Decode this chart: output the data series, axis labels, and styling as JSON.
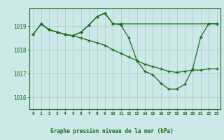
{
  "title": "Graphe pression niveau de la mer (hPa)",
  "background_color": "#cce8e8",
  "plot_bg_color": "#cce8e8",
  "line_color": "#1a6b1a",
  "grid_color": "#aacece",
  "label_bg_color": "#cce8e8",
  "xlim": [
    -0.5,
    23.5
  ],
  "ylim": [
    1015.5,
    1019.75
  ],
  "xticks": [
    0,
    1,
    2,
    3,
    4,
    5,
    6,
    7,
    8,
    9,
    10,
    11,
    12,
    13,
    14,
    15,
    16,
    17,
    18,
    19,
    20,
    21,
    22,
    23
  ],
  "yticks": [
    1016,
    1017,
    1018,
    1019
  ],
  "series": [
    {
      "x": [
        0,
        1,
        2,
        3,
        4,
        5,
        6,
        7,
        8,
        9,
        10,
        11,
        22,
        23
      ],
      "y": [
        1018.65,
        1019.1,
        1018.85,
        1018.75,
        1018.65,
        1018.6,
        1018.75,
        1019.05,
        1019.4,
        1019.55,
        1019.1,
        1019.1,
        1019.1,
        1019.1
      ]
    },
    {
      "x": [
        0,
        1,
        2,
        3,
        4,
        5,
        6,
        7,
        8,
        9,
        10,
        11,
        12,
        13,
        14,
        15,
        16,
        17,
        18,
        19,
        20,
        21,
        22,
        23
      ],
      "y": [
        1018.65,
        1019.1,
        1018.85,
        1018.75,
        1018.65,
        1018.6,
        1018.5,
        1018.4,
        1018.3,
        1018.2,
        1018.0,
        1017.85,
        1017.7,
        1017.55,
        1017.4,
        1017.3,
        1017.2,
        1017.1,
        1017.05,
        1017.1,
        1017.15,
        1017.15,
        1017.2,
        1017.2
      ]
    },
    {
      "x": [
        1,
        2,
        3,
        4,
        5,
        6,
        7,
        8,
        9,
        10,
        11,
        12,
        13,
        14,
        15,
        16,
        17,
        18,
        19,
        20,
        21,
        22,
        23
      ],
      "y": [
        1019.1,
        1018.85,
        1018.75,
        1018.65,
        1018.6,
        1018.75,
        1019.05,
        1019.4,
        1019.55,
        1019.1,
        1019.05,
        1018.5,
        1017.55,
        1017.1,
        1016.95,
        1016.6,
        1016.35,
        1016.35,
        1016.55,
        1017.2,
        1018.55,
        1019.1,
        1019.1
      ]
    }
  ]
}
